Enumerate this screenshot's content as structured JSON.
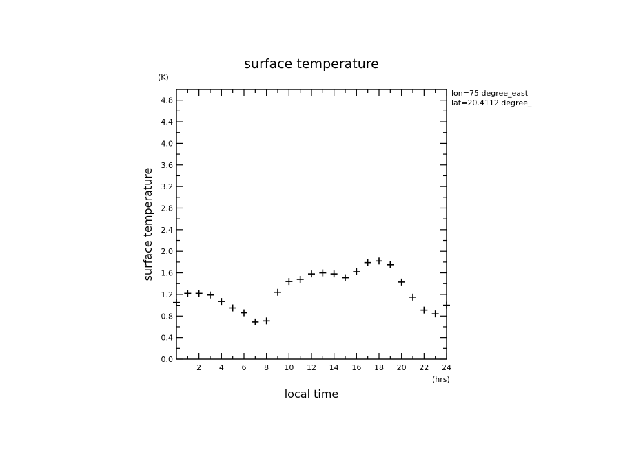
{
  "chart_data": {
    "type": "scatter",
    "title": "surface temperature",
    "xlabel": "local time",
    "ylabel": "surface temperature",
    "x_unit": "(hrs)",
    "y_unit": "(K)",
    "xlim": [
      0,
      24
    ],
    "ylim": [
      0,
      5.0
    ],
    "x_ticks": [
      2,
      4,
      6,
      8,
      10,
      12,
      14,
      16,
      18,
      20,
      22,
      24
    ],
    "y_ticks": [
      0.0,
      0.4,
      0.8,
      1.2,
      1.6,
      2.0,
      2.4,
      2.8,
      3.2,
      3.6,
      4.0,
      4.4,
      4.8
    ],
    "y_tick_labels": [
      "0.0",
      "0.4",
      "0.8",
      "1.2",
      "1.6",
      "2.0",
      "2.4",
      "2.8",
      "3.2",
      "3.6",
      "4.0",
      "4.4",
      "4.8"
    ],
    "grid": false,
    "annotations": [
      "lon=75 degree_east",
      "lat=20.4112 degree_"
    ],
    "series": [
      {
        "marker": "+",
        "x": [
          0,
          1,
          2,
          3,
          4,
          5,
          6,
          7,
          8,
          9,
          10,
          11,
          12,
          13,
          14,
          15,
          16,
          17,
          18,
          19,
          20,
          21,
          22,
          23,
          24
        ],
        "y": [
          1.05,
          1.22,
          1.22,
          1.19,
          1.07,
          0.95,
          0.86,
          0.69,
          0.71,
          1.24,
          1.44,
          1.48,
          1.58,
          1.6,
          1.58,
          1.51,
          1.62,
          1.79,
          1.82,
          1.75,
          1.43,
          1.15,
          0.91,
          0.84,
          1.0
        ]
      }
    ]
  }
}
